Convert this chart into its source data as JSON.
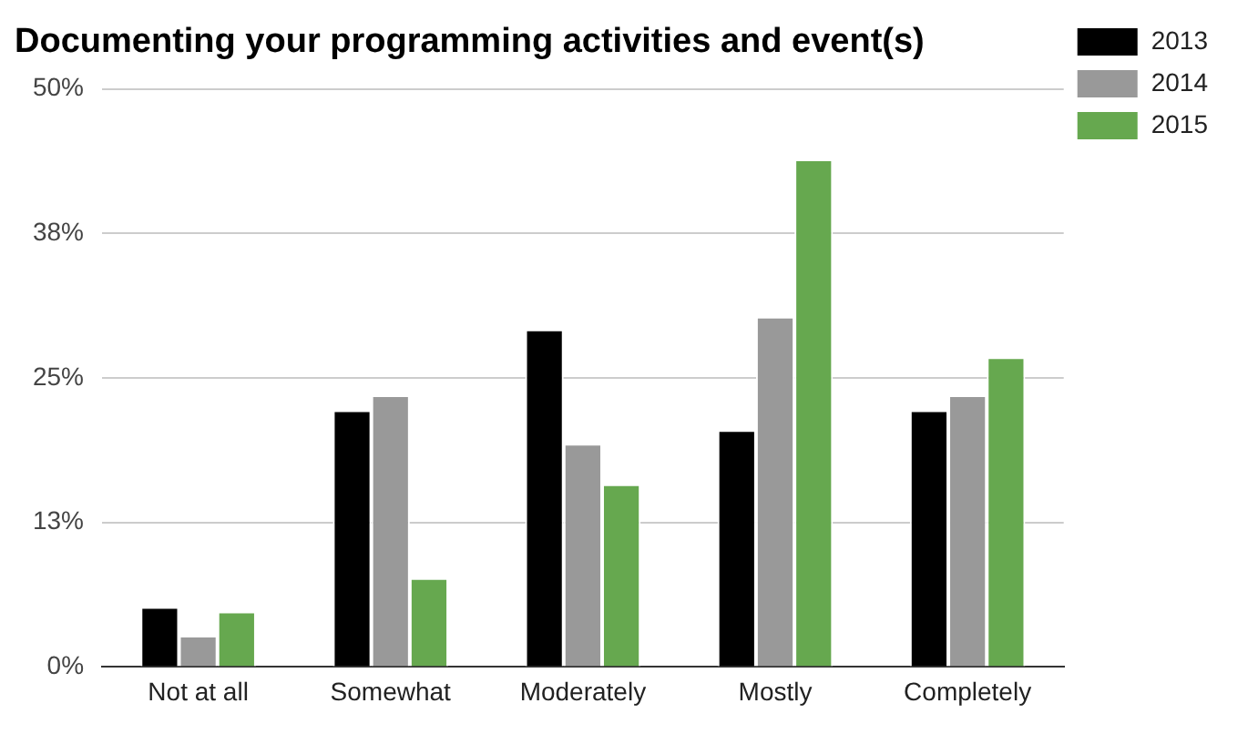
{
  "chart_data": {
    "type": "bar",
    "title": "Documenting your programming activities and event(s)",
    "categories": [
      "Not at all",
      "Somewhat",
      "Moderately",
      "Mostly",
      "Completely"
    ],
    "series": [
      {
        "name": "2013",
        "color": "#000000",
        "values": [
          5.2,
          22.2,
          29.2,
          20.5,
          22.2
        ]
      },
      {
        "name": "2014",
        "color": "#999999",
        "values": [
          2.7,
          23.5,
          19.3,
          30.3,
          23.5
        ]
      },
      {
        "name": "2015",
        "color": "#66a84f",
        "values": [
          4.8,
          7.7,
          15.8,
          43.9,
          26.8
        ]
      }
    ],
    "ylim": [
      0,
      50
    ],
    "yticks": [
      {
        "value": 0,
        "label": "0%"
      },
      {
        "value": 12.5,
        "label": "13%"
      },
      {
        "value": 25,
        "label": "25%"
      },
      {
        "value": 37.5,
        "label": "38%"
      },
      {
        "value": 50,
        "label": "50%"
      }
    ],
    "grid": "y",
    "legend": "top right"
  }
}
